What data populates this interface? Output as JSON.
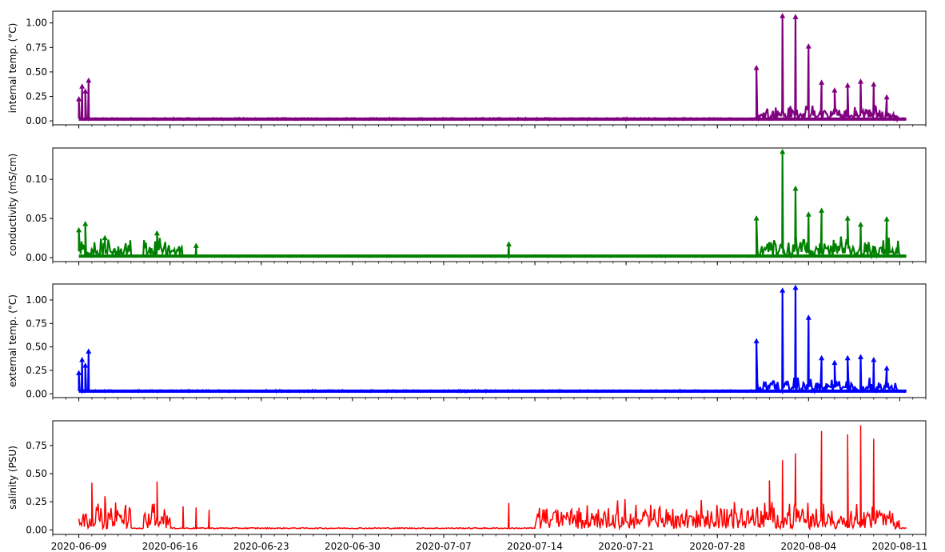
{
  "chart_data": [
    {
      "type": "line",
      "ylabel": "internal temp. (°C)",
      "color": "#800080",
      "marker": "triangle-up",
      "ylim": [
        -0.04,
        1.12
      ],
      "yticks": [
        0.0,
        0.25,
        0.5,
        0.75,
        1.0
      ],
      "ytick_labels": [
        "0.00",
        "0.25",
        "0.50",
        "0.75",
        "1.00"
      ],
      "xlim": [
        "2020-06-07",
        "2020-08-13"
      ],
      "xticks": [
        "2020-06-09",
        "2020-06-16",
        "2020-06-23",
        "2020-06-30",
        "2020-07-07",
        "2020-07-14",
        "2020-07-21",
        "2020-07-28",
        "2020-08-04",
        "2020-08-11"
      ],
      "xtick_labels_visible": false,
      "baseline": 0.01,
      "noise": 0.04,
      "busy_ranges": [
        [
          "2020-07-31",
          "2020-08-11"
        ]
      ],
      "busy_level": 0.12,
      "spikes": [
        {
          "x": "2020-06-09",
          "y": 0.22
        },
        {
          "x": "2020-06-09T06",
          "y": 0.35
        },
        {
          "x": "2020-06-09T12",
          "y": 0.3
        },
        {
          "x": "2020-06-09T18",
          "y": 0.41
        },
        {
          "x": "2020-07-31",
          "y": 0.54
        },
        {
          "x": "2020-08-02",
          "y": 1.07
        },
        {
          "x": "2020-08-03",
          "y": 1.06
        },
        {
          "x": "2020-08-04",
          "y": 0.76
        },
        {
          "x": "2020-08-05",
          "y": 0.39
        },
        {
          "x": "2020-08-06",
          "y": 0.31
        },
        {
          "x": "2020-08-07",
          "y": 0.36
        },
        {
          "x": "2020-08-08",
          "y": 0.4
        },
        {
          "x": "2020-08-09",
          "y": 0.37
        },
        {
          "x": "2020-08-10",
          "y": 0.24
        }
      ]
    },
    {
      "type": "line",
      "ylabel": "conductivity (mS/cm)",
      "color": "#008000",
      "marker": "triangle-up",
      "ylim": [
        -0.005,
        0.14
      ],
      "yticks": [
        0.0,
        0.05,
        0.1
      ],
      "ytick_labels": [
        "0.00",
        "0.05",
        "0.10"
      ],
      "xlim": [
        "2020-06-07",
        "2020-08-13"
      ],
      "xticks": [
        "2020-06-09",
        "2020-06-16",
        "2020-06-23",
        "2020-06-30",
        "2020-07-07",
        "2020-07-14",
        "2020-07-21",
        "2020-07-28",
        "2020-08-04",
        "2020-08-11"
      ],
      "xtick_labels_visible": false,
      "baseline": 0.001,
      "noise": 0.004,
      "busy_ranges": [
        [
          "2020-06-09",
          "2020-06-13"
        ],
        [
          "2020-06-14",
          "2020-06-17"
        ],
        [
          "2020-07-31",
          "2020-08-11"
        ]
      ],
      "busy_level": 0.02,
      "spikes": [
        {
          "x": "2020-06-09",
          "y": 0.035
        },
        {
          "x": "2020-06-09T12",
          "y": 0.043
        },
        {
          "x": "2020-06-11",
          "y": 0.025
        },
        {
          "x": "2020-06-15",
          "y": 0.031
        },
        {
          "x": "2020-06-18",
          "y": 0.015
        },
        {
          "x": "2020-07-12",
          "y": 0.017
        },
        {
          "x": "2020-07-31",
          "y": 0.05
        },
        {
          "x": "2020-08-02",
          "y": 0.135
        },
        {
          "x": "2020-08-03",
          "y": 0.088
        },
        {
          "x": "2020-08-04",
          "y": 0.055
        },
        {
          "x": "2020-08-05",
          "y": 0.06
        },
        {
          "x": "2020-08-07",
          "y": 0.05
        },
        {
          "x": "2020-08-08",
          "y": 0.042
        },
        {
          "x": "2020-08-10",
          "y": 0.049
        }
      ]
    },
    {
      "type": "line",
      "ylabel": "external temp. (°C)",
      "color": "#0000ff",
      "marker": "triangle-up",
      "ylim": [
        -0.04,
        1.17
      ],
      "yticks": [
        0.0,
        0.25,
        0.5,
        0.75,
        1.0
      ],
      "ytick_labels": [
        "0.00",
        "0.25",
        "0.50",
        "0.75",
        "1.00"
      ],
      "xlim": [
        "2020-06-07",
        "2020-08-13"
      ],
      "xticks": [
        "2020-06-09",
        "2020-06-16",
        "2020-06-23",
        "2020-06-30",
        "2020-07-07",
        "2020-07-14",
        "2020-07-21",
        "2020-07-28",
        "2020-08-04",
        "2020-08-11"
      ],
      "xtick_labels_visible": false,
      "baseline": 0.02,
      "noise": 0.04,
      "busy_ranges": [
        [
          "2020-07-31",
          "2020-08-11"
        ]
      ],
      "busy_level": 0.12,
      "spikes": [
        {
          "x": "2020-06-09",
          "y": 0.22
        },
        {
          "x": "2020-06-09T06",
          "y": 0.36
        },
        {
          "x": "2020-06-09T12",
          "y": 0.3
        },
        {
          "x": "2020-06-09T18",
          "y": 0.45
        },
        {
          "x": "2020-07-31",
          "y": 0.56
        },
        {
          "x": "2020-08-02",
          "y": 1.1
        },
        {
          "x": "2020-08-03",
          "y": 1.13
        },
        {
          "x": "2020-08-04",
          "y": 0.81
        },
        {
          "x": "2020-08-05",
          "y": 0.38
        },
        {
          "x": "2020-08-06",
          "y": 0.33
        },
        {
          "x": "2020-08-07",
          "y": 0.38
        },
        {
          "x": "2020-08-08",
          "y": 0.39
        },
        {
          "x": "2020-08-09",
          "y": 0.36
        },
        {
          "x": "2020-08-10",
          "y": 0.27
        }
      ]
    },
    {
      "type": "line",
      "ylabel": "salinity (PSU)",
      "color": "#ff0000",
      "marker": "none",
      "ylim": [
        -0.04,
        0.97
      ],
      "yticks": [
        0.0,
        0.25,
        0.5,
        0.75
      ],
      "ytick_labels": [
        "0.00",
        "0.25",
        "0.50",
        "0.75"
      ],
      "xlim": [
        "2020-06-07",
        "2020-08-13"
      ],
      "xticks": [
        "2020-06-09",
        "2020-06-16",
        "2020-06-23",
        "2020-06-30",
        "2020-07-07",
        "2020-07-14",
        "2020-07-21",
        "2020-07-28",
        "2020-08-04",
        "2020-08-11"
      ],
      "xtick_labels_visible": true,
      "xtick_labels": [
        "2020-06-09",
        "2020-06-16",
        "2020-06-23",
        "2020-06-30",
        "2020-07-07",
        "2020-07-14",
        "2020-07-21",
        "2020-07-28",
        "2020-08-04",
        "2020-08-11"
      ],
      "baseline": 0.01,
      "noise": 0.02,
      "busy_ranges": [
        [
          "2020-06-09",
          "2020-06-13"
        ],
        [
          "2020-06-14",
          "2020-06-16"
        ],
        [
          "2020-07-14",
          "2020-07-31"
        ],
        [
          "2020-07-31",
          "2020-08-11"
        ]
      ],
      "busy_level": 0.2,
      "spikes": [
        {
          "x": "2020-06-10",
          "y": 0.42
        },
        {
          "x": "2020-06-11",
          "y": 0.3
        },
        {
          "x": "2020-06-15",
          "y": 0.43
        },
        {
          "x": "2020-06-17",
          "y": 0.21
        },
        {
          "x": "2020-06-18",
          "y": 0.2
        },
        {
          "x": "2020-06-19",
          "y": 0.18
        },
        {
          "x": "2020-07-12",
          "y": 0.24
        },
        {
          "x": "2020-08-01",
          "y": 0.44
        },
        {
          "x": "2020-08-02",
          "y": 0.62
        },
        {
          "x": "2020-08-03",
          "y": 0.68
        },
        {
          "x": "2020-08-05",
          "y": 0.88
        },
        {
          "x": "2020-08-07",
          "y": 0.85
        },
        {
          "x": "2020-08-08",
          "y": 0.93
        },
        {
          "x": "2020-08-09",
          "y": 0.81
        }
      ]
    }
  ]
}
